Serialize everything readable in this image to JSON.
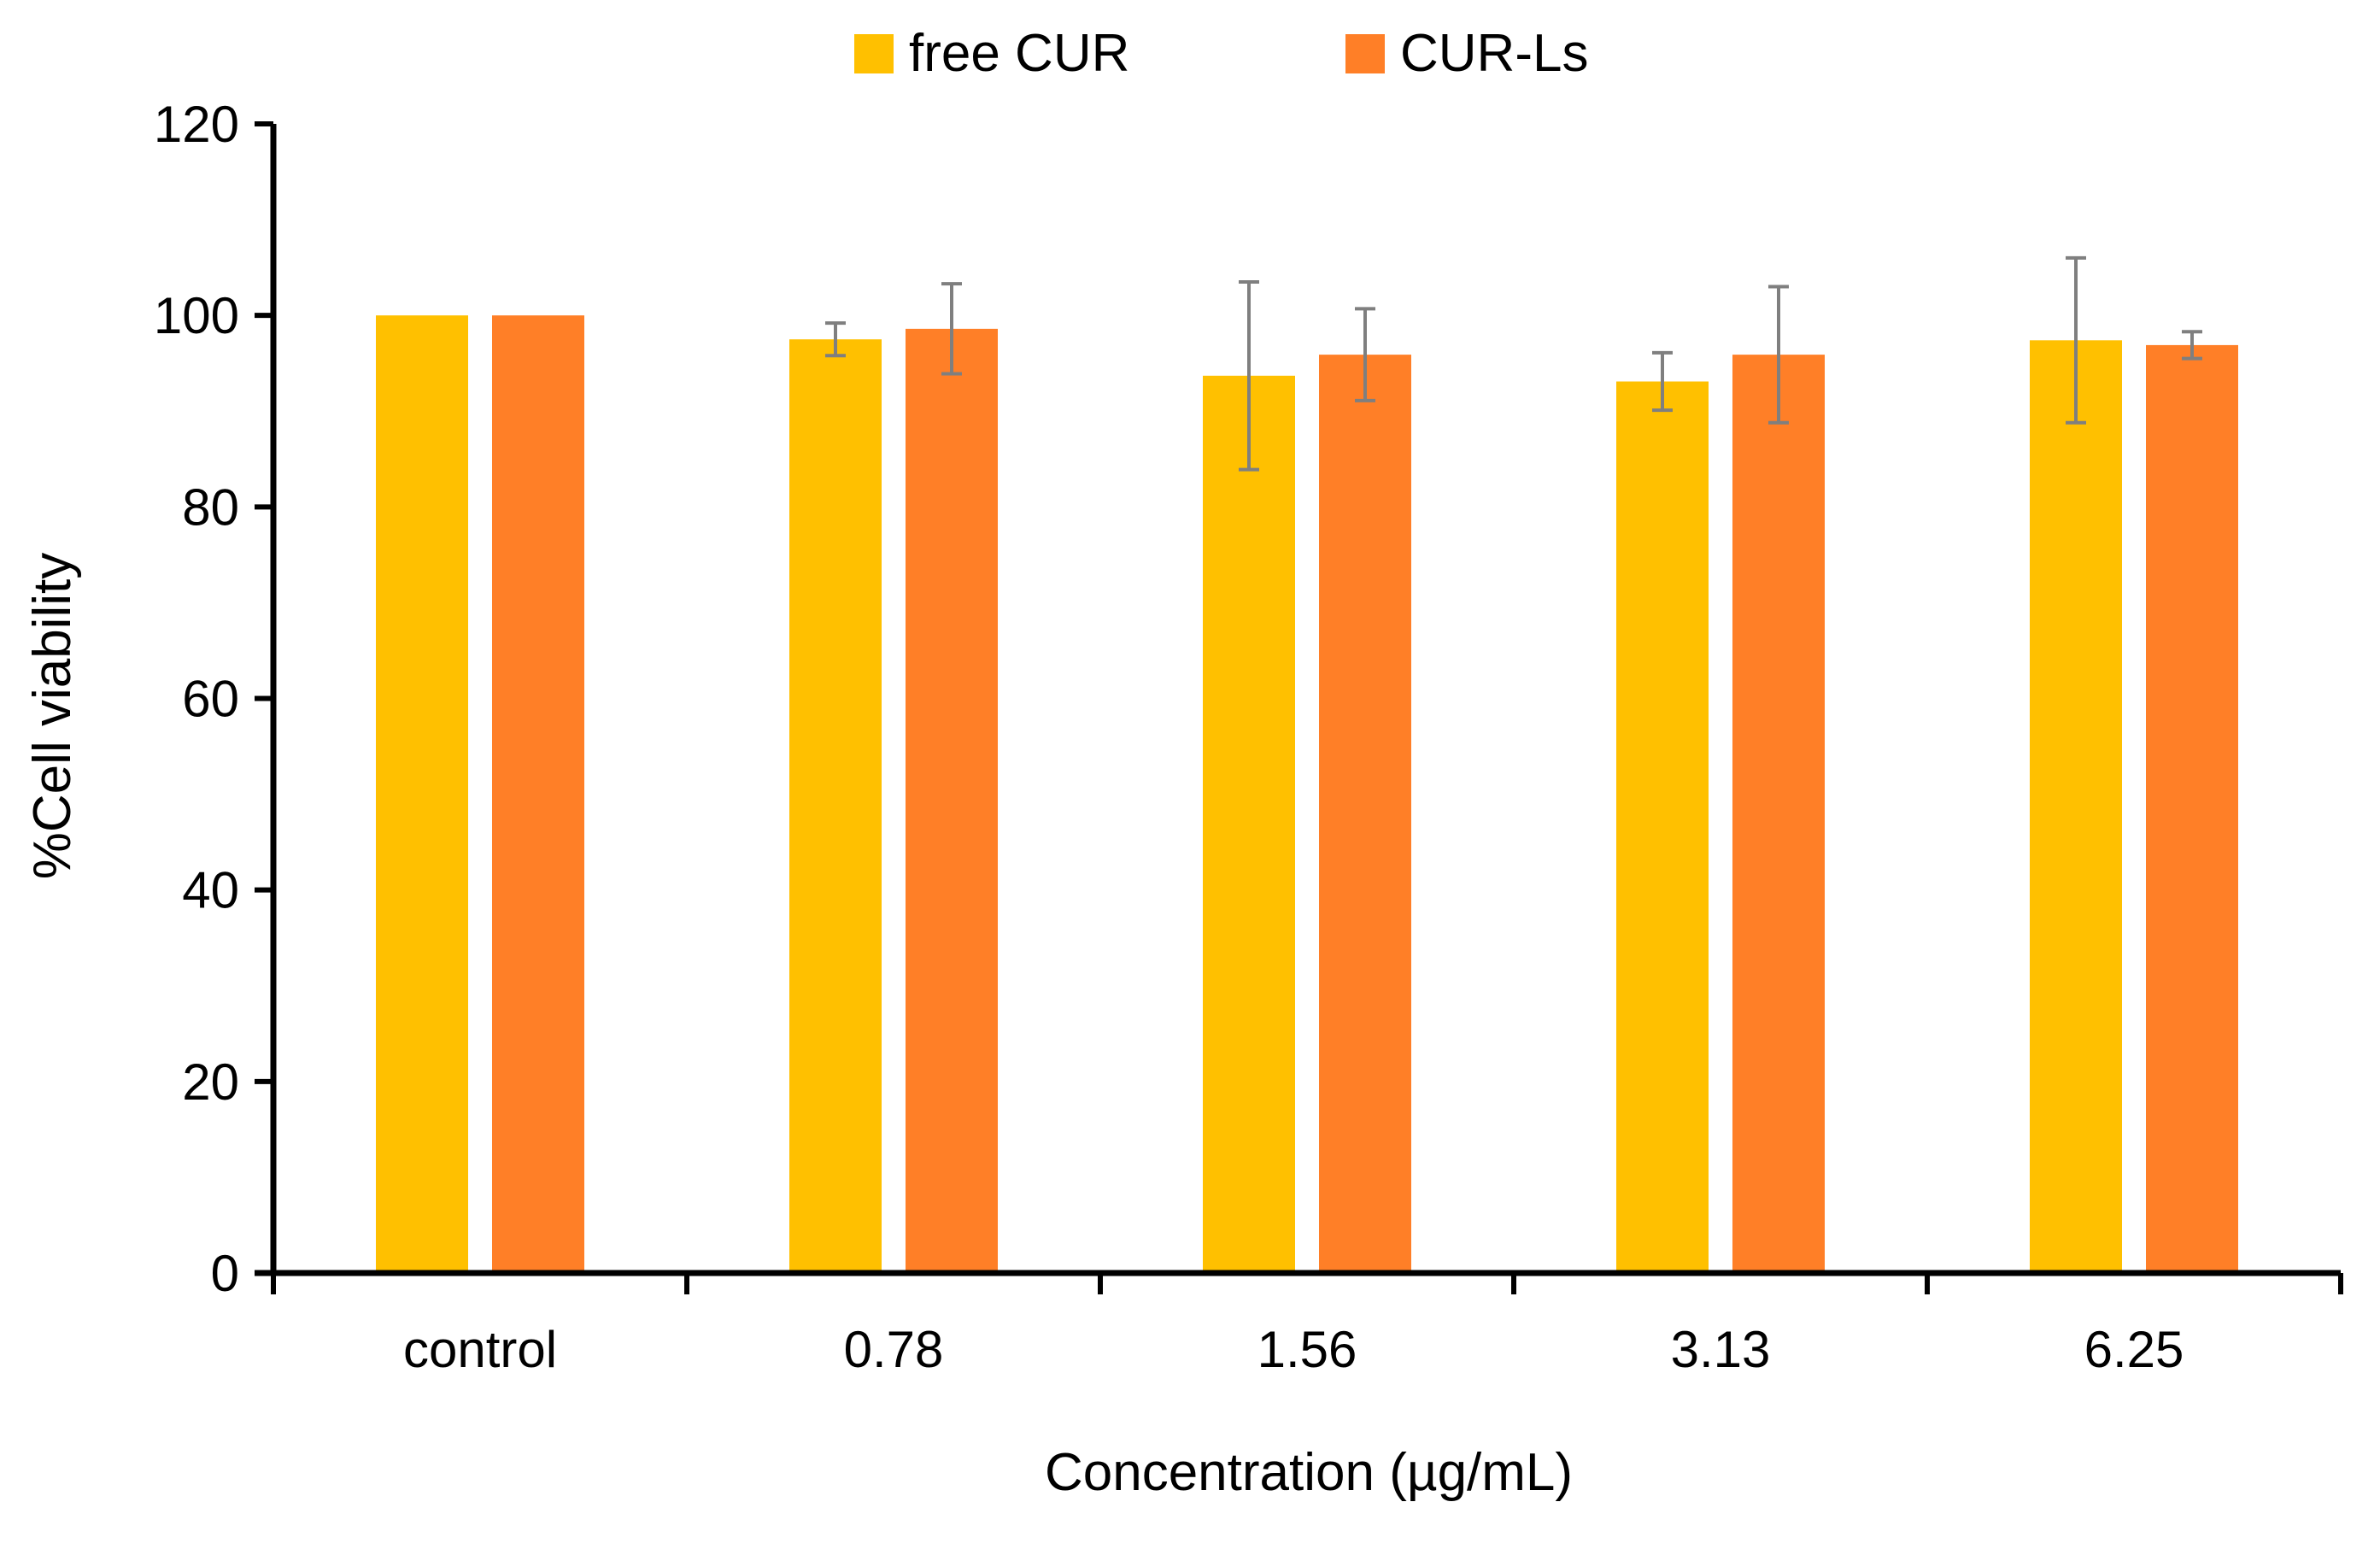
{
  "chart_data": {
    "type": "bar",
    "title": "",
    "xlabel": "Concentration (µg/mL)",
    "ylabel": "%Cell viability",
    "categories": [
      "control",
      "0.78",
      "1.56",
      "3.13",
      "6.25"
    ],
    "ylim": [
      0,
      120
    ],
    "yticks": [
      0,
      20,
      40,
      60,
      80,
      100,
      120
    ],
    "ytick_labels": [
      "0",
      "20",
      "40",
      "60",
      "80",
      "100",
      "120"
    ],
    "grid": false,
    "legend_position": "top-center",
    "series": [
      {
        "name": "free CUR",
        "color": "#FFC000",
        "values": [
          100,
          97.5,
          93.7,
          93.1,
          97.4
        ],
        "errors": [
          0,
          1.7,
          9.8,
          3.0,
          8.6
        ]
      },
      {
        "name": "CUR-Ls",
        "color": "#FF7F27",
        "values": [
          100,
          98.6,
          95.9,
          95.9,
          96.9
        ],
        "errors": [
          0,
          4.7,
          4.8,
          7.1,
          1.4
        ]
      }
    ],
    "error_bar_color": "#7f7f7f"
  }
}
